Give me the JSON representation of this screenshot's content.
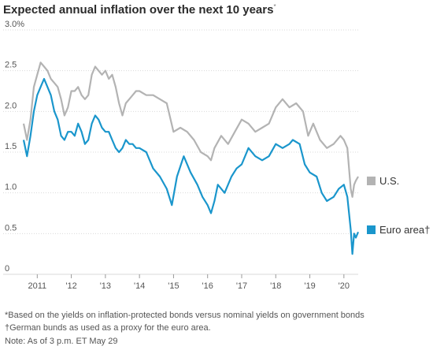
{
  "title": "Expected annual inflation over the next 10 years",
  "title_mark": "*",
  "notes": {
    "note1": "*Based on the yields on inflation-protected bonds versus nominal yields on government bonds",
    "note2": "†German bunds as used as a proxy for the euro area.",
    "note3": "Note: As of 3 p.m. ET May 29"
  },
  "chart_data": {
    "type": "line",
    "title": "Expected annual inflation over the next 10 years",
    "xlabel": "",
    "ylabel": "",
    "xlim": [
      2010.6,
      2020.42
    ],
    "ylim": [
      0,
      3.0
    ],
    "y_ticks": [
      0,
      0.5,
      1.0,
      1.5,
      2.0,
      2.5,
      3.0
    ],
    "y_tick_labels": [
      "0",
      "0.5",
      "1.0",
      "1.5",
      "2.0",
      "2.5",
      "3.0%"
    ],
    "x_ticks": [
      2011,
      2012,
      2013,
      2014,
      2015,
      2016,
      2017,
      2018,
      2019,
      2020
    ],
    "x_tick_labels": [
      "2011",
      "'12",
      "'13",
      "'14",
      "'15",
      "'16",
      "'17",
      "'18",
      "'19",
      "'20"
    ],
    "grid": "horizontal",
    "legend": "right",
    "series": [
      {
        "name": "U.S.",
        "color": "#b3b3b3",
        "x": [
          2010.6,
          2010.7,
          2010.8,
          2010.9,
          2011.0,
          2011.1,
          2011.2,
          2011.3,
          2011.4,
          2011.5,
          2011.6,
          2011.7,
          2011.8,
          2011.9,
          2012.0,
          2012.1,
          2012.2,
          2012.3,
          2012.4,
          2012.5,
          2012.6,
          2012.7,
          2012.8,
          2012.9,
          2013.0,
          2013.1,
          2013.2,
          2013.3,
          2013.4,
          2013.5,
          2013.6,
          2013.7,
          2013.8,
          2013.9,
          2014.0,
          2014.2,
          2014.4,
          2014.6,
          2014.8,
          2015.0,
          2015.2,
          2015.4,
          2015.6,
          2015.8,
          2016.0,
          2016.1,
          2016.2,
          2016.4,
          2016.6,
          2016.8,
          2017.0,
          2017.2,
          2017.4,
          2017.6,
          2017.8,
          2018.0,
          2018.2,
          2018.4,
          2018.6,
          2018.8,
          2018.95,
          2019.1,
          2019.3,
          2019.5,
          2019.7,
          2019.9,
          2020.0,
          2020.1,
          2020.2,
          2020.25,
          2020.3,
          2020.35,
          2020.42
        ],
        "values": [
          1.85,
          1.65,
          1.9,
          2.3,
          2.45,
          2.6,
          2.55,
          2.5,
          2.4,
          2.35,
          2.3,
          2.15,
          1.95,
          2.05,
          2.25,
          2.25,
          2.3,
          2.2,
          2.15,
          2.2,
          2.45,
          2.55,
          2.5,
          2.45,
          2.5,
          2.4,
          2.45,
          2.3,
          2.1,
          1.95,
          2.1,
          2.15,
          2.2,
          2.25,
          2.25,
          2.2,
          2.2,
          2.15,
          2.1,
          1.75,
          1.8,
          1.75,
          1.65,
          1.5,
          1.45,
          1.4,
          1.55,
          1.7,
          1.6,
          1.75,
          1.9,
          1.85,
          1.75,
          1.8,
          1.85,
          2.05,
          2.15,
          2.05,
          2.1,
          2.0,
          1.7,
          1.85,
          1.65,
          1.55,
          1.6,
          1.7,
          1.65,
          1.55,
          1.05,
          0.95,
          1.1,
          1.15,
          1.2
        ]
      },
      {
        "name": "Euro area†",
        "color": "#1a96cc",
        "x": [
          2010.6,
          2010.7,
          2010.8,
          2010.9,
          2011.0,
          2011.1,
          2011.2,
          2011.3,
          2011.4,
          2011.5,
          2011.6,
          2011.7,
          2011.8,
          2011.9,
          2012.0,
          2012.1,
          2012.2,
          2012.3,
          2012.4,
          2012.5,
          2012.6,
          2012.7,
          2012.8,
          2012.9,
          2013.0,
          2013.1,
          2013.2,
          2013.3,
          2013.4,
          2013.5,
          2013.6,
          2013.7,
          2013.8,
          2013.9,
          2014.0,
          2014.2,
          2014.4,
          2014.6,
          2014.8,
          2014.95,
          2015.1,
          2015.3,
          2015.5,
          2015.7,
          2015.85,
          2016.0,
          2016.1,
          2016.2,
          2016.3,
          2016.5,
          2016.7,
          2016.85,
          2017.0,
          2017.2,
          2017.4,
          2017.6,
          2017.8,
          2018.0,
          2018.2,
          2018.4,
          2018.5,
          2018.7,
          2018.85,
          2019.0,
          2019.2,
          2019.35,
          2019.5,
          2019.7,
          2019.85,
          2020.0,
          2020.1,
          2020.2,
          2020.25,
          2020.3,
          2020.35,
          2020.42
        ],
        "values": [
          1.65,
          1.45,
          1.7,
          2.0,
          2.2,
          2.3,
          2.4,
          2.3,
          2.2,
          2.0,
          1.9,
          1.7,
          1.65,
          1.75,
          1.75,
          1.7,
          1.85,
          1.75,
          1.6,
          1.65,
          1.85,
          1.95,
          1.9,
          1.8,
          1.75,
          1.75,
          1.65,
          1.55,
          1.5,
          1.55,
          1.65,
          1.6,
          1.6,
          1.55,
          1.55,
          1.5,
          1.3,
          1.2,
          1.05,
          0.85,
          1.2,
          1.45,
          1.25,
          1.1,
          0.95,
          0.85,
          0.75,
          0.9,
          1.1,
          1.0,
          1.2,
          1.3,
          1.35,
          1.55,
          1.45,
          1.4,
          1.45,
          1.6,
          1.55,
          1.6,
          1.65,
          1.6,
          1.35,
          1.25,
          1.2,
          1.0,
          0.9,
          0.95,
          1.05,
          1.1,
          0.95,
          0.55,
          0.25,
          0.5,
          0.45,
          0.52
        ]
      }
    ]
  }
}
